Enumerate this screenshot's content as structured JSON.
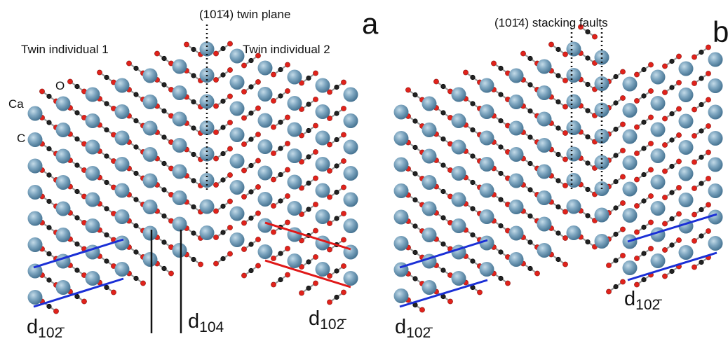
{
  "panel_a": {
    "label": "a",
    "twin_plane": "(101̄4) twin plane",
    "twin_individual_1": "Twin individual 1",
    "twin_individual_2": "Twin individual 2",
    "atoms": {
      "ca": "Ca",
      "o": "O",
      "c": "C"
    },
    "d_labels": [
      {
        "symbol": "d",
        "subscript": "102̄"
      },
      {
        "symbol": "d",
        "subscript": "104"
      },
      {
        "symbol": "d",
        "subscript": "102̄"
      }
    ]
  },
  "panel_b": {
    "label": "b",
    "stacking_faults": "(101̄4) stacking faults",
    "d_labels": [
      {
        "symbol": "d",
        "subscript": "102̄"
      },
      {
        "symbol": "d",
        "subscript": "102̄"
      }
    ]
  }
}
